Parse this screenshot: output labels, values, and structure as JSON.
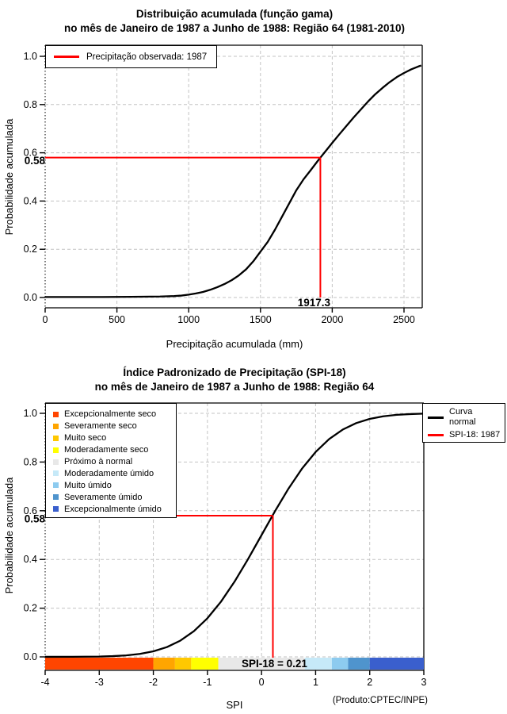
{
  "chart_data": [
    {
      "type": "line",
      "id": "gamma-cdf",
      "title_line1": "Distribuição acumulada (função gama)",
      "title_line2": "no mês de Janeiro de 1987 a Junho de 1988: Região 64 (1981-2010)",
      "xlabel": "Precipitação acumulada (mm)",
      "ylabel": "Probabilidade acumulada",
      "xlim": [
        0,
        2627
      ],
      "ylim": [
        0,
        1
      ],
      "grid": true,
      "x_ticks": [
        0,
        500,
        1000,
        1500,
        2000,
        2500
      ],
      "x_tick_labels": [
        "0",
        "500",
        "1000",
        "1500",
        "2000",
        "2500"
      ],
      "y_ticks": [
        0,
        0.2,
        0.4,
        0.6,
        0.8,
        1.0
      ],
      "y_tick_labels": [
        "0.0",
        "0.2",
        "0.4",
        "0.6",
        "0.8",
        "1.0"
      ],
      "curve_color": "#000000",
      "legend": {
        "label": "Precipitação observada: 1987",
        "color": "#FF0000",
        "position": "top-left"
      },
      "annotation": {
        "x": 1917.3,
        "p": 0.58,
        "x_label": "1917.3",
        "p_label": "0.58",
        "line_color": "#FF0000",
        "p_label_color": "#808080"
      },
      "curve": [
        [
          0,
          0.002
        ],
        [
          200,
          0.002
        ],
        [
          400,
          0.002
        ],
        [
          600,
          0.003
        ],
        [
          800,
          0.004
        ],
        [
          900,
          0.006
        ],
        [
          950,
          0.008
        ],
        [
          1000,
          0.012
        ],
        [
          1050,
          0.017
        ],
        [
          1100,
          0.023
        ],
        [
          1150,
          0.032
        ],
        [
          1200,
          0.043
        ],
        [
          1250,
          0.056
        ],
        [
          1300,
          0.072
        ],
        [
          1350,
          0.092
        ],
        [
          1400,
          0.117
        ],
        [
          1450,
          0.15
        ],
        [
          1500,
          0.19
        ],
        [
          1550,
          0.23
        ],
        [
          1600,
          0.28
        ],
        [
          1650,
          0.335
        ],
        [
          1700,
          0.39
        ],
        [
          1750,
          0.445
        ],
        [
          1800,
          0.49
        ],
        [
          1850,
          0.528
        ],
        [
          1900,
          0.567
        ],
        [
          1917.3,
          0.58
        ],
        [
          1950,
          0.604
        ],
        [
          2000,
          0.641
        ],
        [
          2050,
          0.677
        ],
        [
          2100,
          0.712
        ],
        [
          2150,
          0.747
        ],
        [
          2200,
          0.78
        ],
        [
          2250,
          0.813
        ],
        [
          2300,
          0.843
        ],
        [
          2350,
          0.869
        ],
        [
          2400,
          0.893
        ],
        [
          2450,
          0.914
        ],
        [
          2500,
          0.931
        ],
        [
          2550,
          0.946
        ],
        [
          2600,
          0.958
        ],
        [
          2620,
          0.962
        ]
      ]
    },
    {
      "type": "line",
      "id": "spi-cdf",
      "title_line1": "Índice Padronizado de Precipitação (SPI-18)",
      "title_line2": "no mês de Janeiro de 1987 a Junho de 1988: Região 64",
      "xlabel": "SPI",
      "ylabel": "Probabilidade acumulada",
      "note": "(Produto:CPTEC/INPE)",
      "xlim": [
        -4,
        3
      ],
      "ylim": [
        0,
        1
      ],
      "grid": true,
      "x_ticks": [
        -4,
        -3,
        -2,
        -1,
        0,
        1,
        2,
        3
      ],
      "x_tick_labels": [
        "-4",
        "-3",
        "-2",
        "-1",
        "0",
        "1",
        "2",
        "3"
      ],
      "y_ticks": [
        0,
        0.2,
        0.4,
        0.6,
        0.8,
        1.0
      ],
      "y_tick_labels": [
        "0.0",
        "0.2",
        "0.4",
        "0.6",
        "0.8",
        "1.0"
      ],
      "curve_color": "#000000",
      "categories": [
        {
          "label": "Excepcionalmente seco",
          "color": "#FF4500",
          "from": -4,
          "to": -2
        },
        {
          "label": "Severamente seco",
          "color": "#FFA500",
          "from": -2,
          "to": -1.6
        },
        {
          "label": "Muito seco",
          "color": "#FFC800",
          "from": -1.6,
          "to": -1.3
        },
        {
          "label": "Moderadamente seco",
          "color": "#FFFF00",
          "from": -1.3,
          "to": -0.8
        },
        {
          "label": "Próximo à normal",
          "color": "#E8E8E8",
          "from": -0.8,
          "to": 0.8
        },
        {
          "label": "Moderadamente úmido",
          "color": "#C6E9F8",
          "from": 0.8,
          "to": 1.3
        },
        {
          "label": "Muito úmido",
          "color": "#8DCBEF",
          "from": 1.3,
          "to": 1.6
        },
        {
          "label": "Severamente úmido",
          "color": "#4F94CD",
          "from": 1.6,
          "to": 2
        },
        {
          "label": "Excepcionalmente úmido",
          "color": "#3A5FCD",
          "from": 2,
          "to": 3
        }
      ],
      "curve_legend": [
        {
          "label": "Curva normal",
          "color": "#000000"
        },
        {
          "label": "SPI-18: 1987",
          "color": "#FF0000"
        }
      ],
      "annotation": {
        "x": 0.21,
        "p": 0.58,
        "label": "SPI-18 = 0.21",
        "p_label": "0.58",
        "line_color": "#FF0000",
        "p_label_color": "#808080"
      },
      "curve": [
        [
          -4,
          0.0002
        ],
        [
          -3.5,
          0.0004
        ],
        [
          -3,
          0.0013
        ],
        [
          -2.75,
          0.003
        ],
        [
          -2.5,
          0.0062
        ],
        [
          -2.25,
          0.0122
        ],
        [
          -2,
          0.0228
        ],
        [
          -1.75,
          0.0401
        ],
        [
          -1.5,
          0.0668
        ],
        [
          -1.25,
          0.1056
        ],
        [
          -1,
          0.1587
        ],
        [
          -0.75,
          0.2266
        ],
        [
          -0.5,
          0.3085
        ],
        [
          -0.25,
          0.4013
        ],
        [
          0,
          0.5
        ],
        [
          0.21,
          0.583
        ],
        [
          0.25,
          0.5987
        ],
        [
          0.5,
          0.6915
        ],
        [
          0.75,
          0.7734
        ],
        [
          1,
          0.8413
        ],
        [
          1.25,
          0.8944
        ],
        [
          1.5,
          0.9332
        ],
        [
          1.75,
          0.9599
        ],
        [
          2,
          0.9772
        ],
        [
          2.25,
          0.9878
        ],
        [
          2.5,
          0.9938
        ],
        [
          2.75,
          0.997
        ],
        [
          3,
          0.9987
        ]
      ]
    }
  ]
}
